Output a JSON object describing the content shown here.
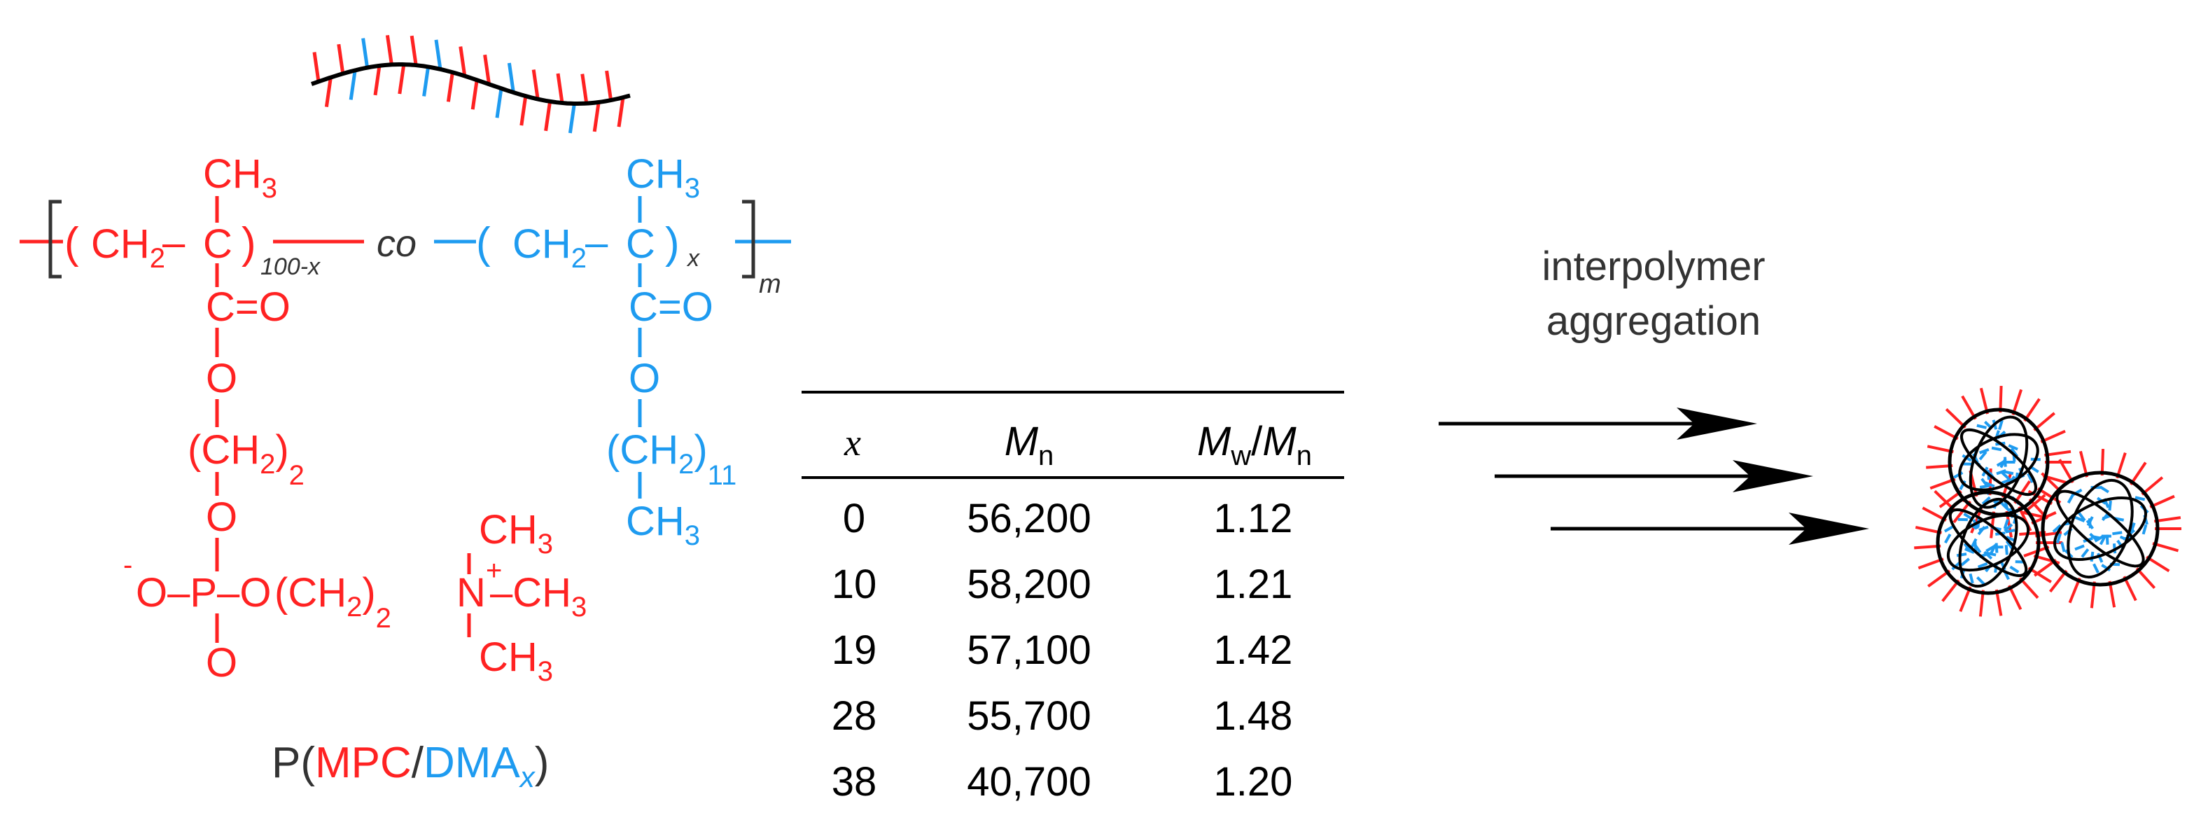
{
  "colors": {
    "mpc": "#ff2222",
    "dma": "#1e9bf0",
    "ink": "#000000",
    "gray": "#333333"
  },
  "structure": {
    "mpc": {
      "ch3": "CH",
      "ch3_sub": "3",
      "open_paren": "(",
      "ch2": "CH",
      "ch2_sub": "2",
      "dash": "–",
      "carbon": "C",
      "close_paren": ")",
      "repeat_sub": "100-x",
      "carbonyl": "C=O",
      "ester_o": "O",
      "ethyl": "(CH",
      "ethyl_sub": "2",
      "ethyl_close": ")",
      "ethyl_n": "2",
      "phos_o": "O",
      "phosphate_minus": "-",
      "phosphate": "O–P–O",
      "phos_double_o": "O",
      "linker_open": "(CH",
      "linker_sub": "2",
      "linker_close": ")",
      "linker_n": "2",
      "nitrogen": "N",
      "plus": "+",
      "n_ch3_top": "CH",
      "n_ch3_top_sub": "3",
      "n_ch3_right": "–CH",
      "n_ch3_right_sub": "3",
      "n_ch3_bottom": "CH",
      "n_ch3_bottom_sub": "3"
    },
    "co": "co",
    "dma": {
      "ch3": "CH",
      "ch3_sub": "3",
      "open_paren": "(",
      "ch2": "CH",
      "ch2_sub": "2",
      "dash": "–",
      "carbon": "C",
      "close_paren": ")",
      "repeat_sub": "x",
      "carbonyl": "C=O",
      "ester_o": "O",
      "chain": "(CH",
      "chain_sub": "2",
      "chain_close": ")",
      "chain_n": "11",
      "terminal": "CH",
      "terminal_sub": "3"
    },
    "outer_m": "m"
  },
  "polymer_name": {
    "p_open": "P(",
    "mpc": "MPC",
    "slash": "/",
    "dma": "DMA",
    "dma_sub": "x",
    "close": ")"
  },
  "table": {
    "headers": {
      "x": "x",
      "mn_main": "M",
      "mn_sub": "n",
      "pdi_mw": "M",
      "pdi_mw_sub": "w",
      "pdi_slash": "/",
      "pdi_mn": "M",
      "pdi_mn_sub": "n"
    },
    "rows": [
      {
        "x": "0",
        "mn": "56,200",
        "pdi": "1.12"
      },
      {
        "x": "10",
        "mn": "58,200",
        "pdi": "1.21"
      },
      {
        "x": "19",
        "mn": "57,100",
        "pdi": "1.42"
      },
      {
        "x": "28",
        "mn": "55,700",
        "pdi": "1.48"
      },
      {
        "x": "38",
        "mn": "40,700",
        "pdi": "1.20"
      }
    ]
  },
  "arrow_label": {
    "line1": "interpolymer",
    "line2": "aggregation"
  },
  "icons": {
    "polymer_chain": "comb-polymer-chain-icon",
    "aggregate": "polymer-aggregate-icon",
    "arrows": "reaction-arrow-icon"
  }
}
